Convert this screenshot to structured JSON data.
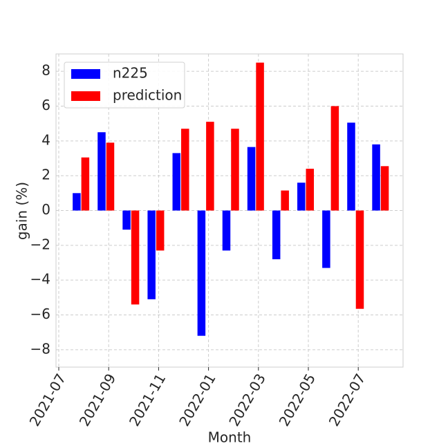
{
  "chart_data": {
    "type": "bar",
    "xlabel": "Month",
    "ylabel": "gain (%)",
    "x": [
      "2021-07",
      "2021-08",
      "2021-09",
      "2021-10",
      "2021-11",
      "2021-12",
      "2022-01",
      "2022-02",
      "2022-03",
      "2022-04",
      "2022-05",
      "2022-06",
      "2022-07"
    ],
    "series": [
      {
        "name": "n225",
        "color": "#0000ff",
        "values": [
          1.0,
          4.5,
          -1.1,
          -5.1,
          3.3,
          -7.2,
          -2.3,
          3.65,
          -2.8,
          1.6,
          -3.3,
          5.05,
          3.8
        ]
      },
      {
        "name": "prediction",
        "color": "#ff0000",
        "values": [
          3.05,
          3.9,
          -5.4,
          -2.3,
          4.7,
          5.1,
          4.7,
          8.5,
          1.15,
          2.4,
          6.0,
          -5.65,
          2.55
        ]
      }
    ],
    "xticks": [
      "2021-07",
      "2021-09",
      "2021-11",
      "2022-01",
      "2022-03",
      "2022-05",
      "2022-07"
    ],
    "ylim": [
      -9,
      9
    ],
    "yticks": [
      {
        "value": -8,
        "label": "−8"
      },
      {
        "value": -6,
        "label": "−6"
      },
      {
        "value": -4,
        "label": "−4"
      },
      {
        "value": -2,
        "label": "−2"
      },
      0,
      2,
      4,
      6,
      8
    ],
    "grid": true,
    "legend": "upper left"
  }
}
